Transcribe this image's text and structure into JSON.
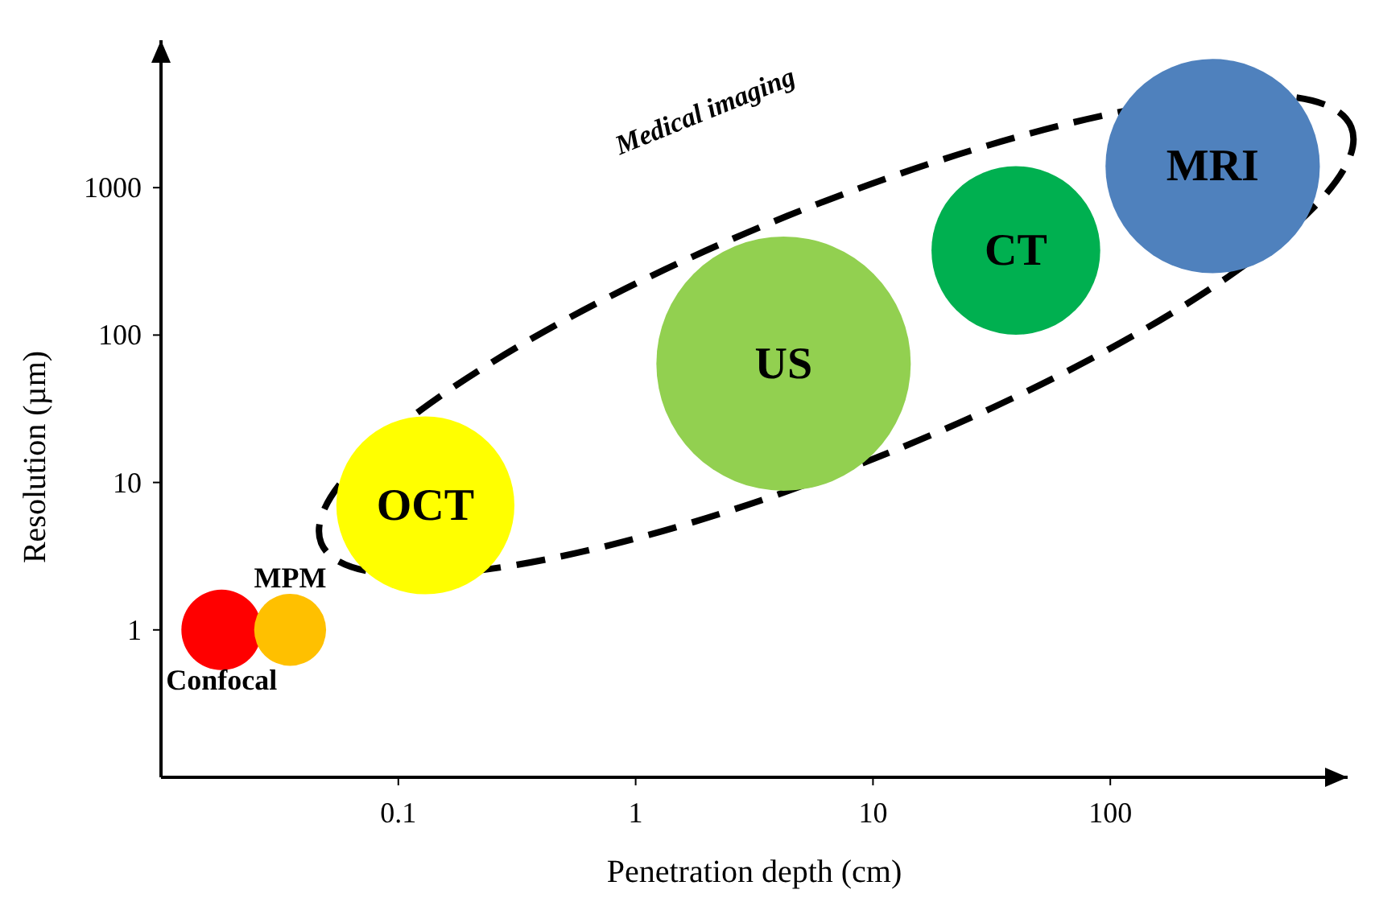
{
  "chart_data": {
    "type": "bubble",
    "xlabel": "Penetration depth (cm)",
    "ylabel": "Resolution (µm)",
    "log": "xy",
    "grid": false,
    "xlim": [
      0.01,
      1000
    ],
    "xticks": [
      0.1,
      1,
      10,
      100
    ],
    "ylim": [
      0.1,
      10000
    ],
    "yticks": [
      1,
      10,
      100,
      1000
    ],
    "annotations": [
      "Medical imaging"
    ],
    "series": [
      {
        "name": "Confocal",
        "color": "#ff0000",
        "x": [
          0.018
        ],
        "values": [
          1
        ],
        "sizes": [
          0.1
        ]
      },
      {
        "name": "MPM",
        "color": "#ffc000",
        "x": [
          0.035
        ],
        "values": [
          1
        ],
        "sizes": [
          0.08
        ]
      },
      {
        "name": "OCT",
        "color": "#ffff00",
        "x": [
          0.13
        ],
        "values": [
          7
        ],
        "sizes": [
          0.49
        ]
      },
      {
        "name": "US",
        "color": "#92d050",
        "x": [
          4.2
        ],
        "values": [
          64
        ],
        "sizes": [
          1
        ]
      },
      {
        "name": "CT",
        "color": "#00b050",
        "x": [
          40
        ],
        "values": [
          375
        ],
        "sizes": [
          0.44
        ]
      },
      {
        "name": "MRI",
        "color": "#4f81bd",
        "x": [
          270
        ],
        "values": [
          1400
        ],
        "sizes": [
          0.71
        ]
      }
    ]
  }
}
